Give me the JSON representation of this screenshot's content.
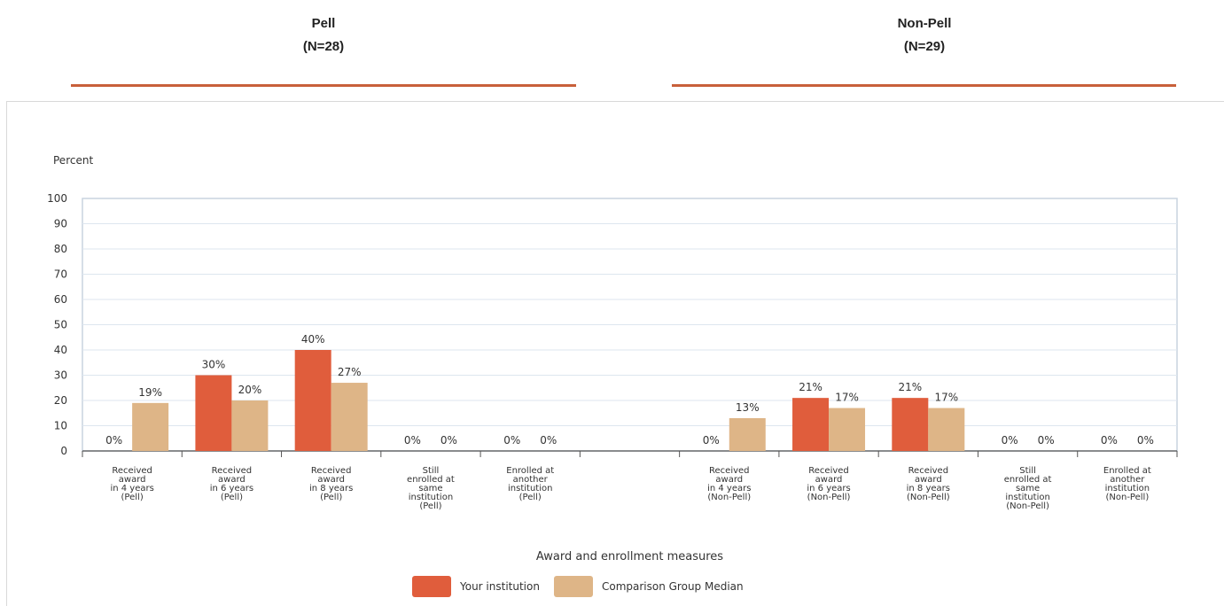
{
  "groups": {
    "pell": {
      "title": "Pell",
      "count": "(N=28)"
    },
    "nonpell": {
      "title": "Non-Pell",
      "count": "(N=29)"
    }
  },
  "colors": {
    "accent_line": "#c8603a",
    "your_institution": "#e05d3c",
    "comparison": "#deb587",
    "plot_bg": "#ffffff",
    "plot_border": "#c9d3df",
    "grid": "#dde6ef"
  },
  "chart_data": {
    "type": "bar",
    "ylabel": "Percent",
    "xlabel": "Award and enrollment measures",
    "ylim": [
      0,
      100
    ],
    "yticks": [
      0,
      10,
      20,
      30,
      40,
      50,
      60,
      70,
      80,
      90,
      100
    ],
    "grid": true,
    "legend_position": "bottom-center",
    "categories": [
      [
        "Received",
        "award",
        "in 4 years",
        "(Pell)"
      ],
      [
        "Received",
        "award",
        "in 6 years",
        "(Pell)"
      ],
      [
        "Received",
        "award",
        "in 8 years",
        "(Pell)"
      ],
      [
        "Still",
        "enrolled at",
        "same",
        "institution",
        "(Pell)"
      ],
      [
        "Enrolled at",
        "another",
        "institution",
        "(Pell)"
      ],
      [],
      [
        "Received",
        "award",
        "in 4 years",
        "(Non-Pell)"
      ],
      [
        "Received",
        "award",
        "in 6 years",
        "(Non-Pell)"
      ],
      [
        "Received",
        "award",
        "in 8 years",
        "(Non-Pell)"
      ],
      [
        "Still",
        "enrolled at",
        "same",
        "institution",
        "(Non-Pell)"
      ],
      [
        "Enrolled at",
        "another",
        "institution",
        "(Non-Pell)"
      ]
    ],
    "series": [
      {
        "name": "Your institution",
        "values": [
          0,
          30,
          40,
          0,
          0,
          null,
          0,
          21,
          21,
          0,
          0
        ],
        "labels": [
          "0%",
          "30%",
          "40%",
          "0%",
          "0%",
          "",
          "0%",
          "21%",
          "21%",
          "0%",
          "0%"
        ]
      },
      {
        "name": "Comparison Group Median",
        "values": [
          19,
          20,
          27,
          0,
          0,
          null,
          13,
          17,
          17,
          0,
          0
        ],
        "labels": [
          "19%",
          "20%",
          "27%",
          "0%",
          "0%",
          "",
          "13%",
          "17%",
          "17%",
          "0%",
          "0%"
        ]
      }
    ]
  }
}
